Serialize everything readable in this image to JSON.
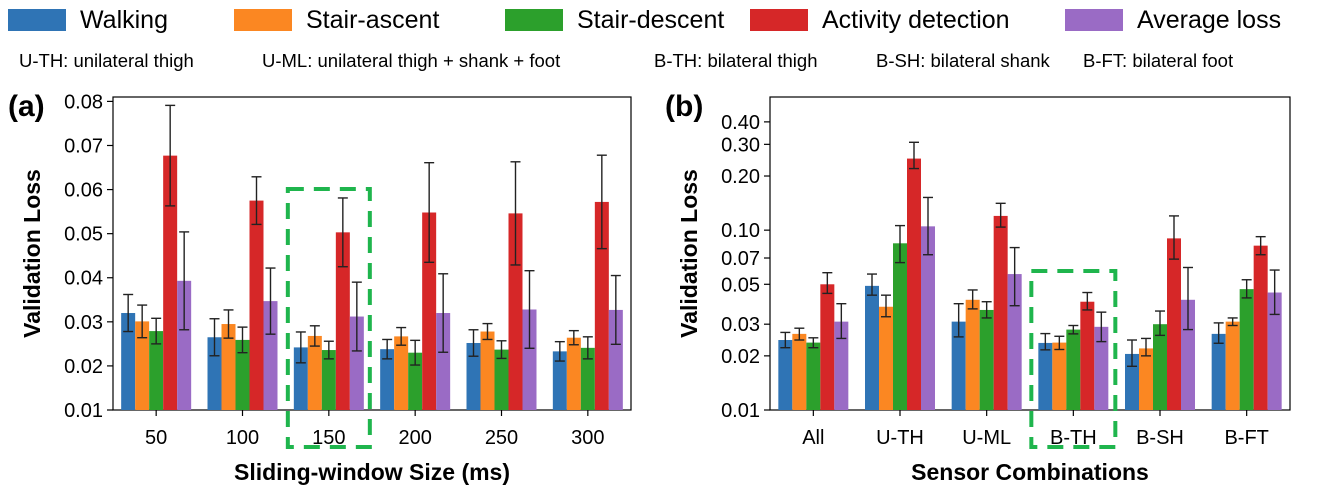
{
  "legend": [
    {
      "label": "Walking",
      "color": "#2f74b5"
    },
    {
      "label": "Stair-ascent",
      "color": "#fb8722"
    },
    {
      "label": "Stair-descent",
      "color": "#2ca02c"
    },
    {
      "label": "Activity detection",
      "color": "#d62728"
    },
    {
      "label": "Average loss",
      "color": "#9a6bc5"
    }
  ],
  "abbreviations": [
    "U-TH: unilateral thigh",
    "U-ML: unilateral thigh + shank + foot",
    "B-TH: bilateral thigh",
    "B-SH: bilateral shank",
    "B-FT: bilateral foot"
  ],
  "chart_data": [
    {
      "panel": "(a)",
      "type": "bar",
      "xlabel": "Sliding-window Size (ms)",
      "ylabel": "Validation Loss",
      "yscale": "linear",
      "ylim": [
        0.01,
        0.081
      ],
      "yticks": [
        "0.01",
        "0.02",
        "0.03",
        "0.04",
        "0.05",
        "0.06",
        "0.07",
        "0.08"
      ],
      "highlight": "150",
      "categories": [
        "50",
        "100",
        "150",
        "200",
        "250",
        "300"
      ],
      "series": [
        {
          "name": "Walking",
          "values": [
            0.032,
            0.0265,
            0.0242,
            0.0238,
            0.0252,
            0.0233
          ],
          "errors": [
            0.0042,
            0.0042,
            0.0035,
            0.0022,
            0.003,
            0.0022
          ]
        },
        {
          "name": "Stair-ascent",
          "values": [
            0.0301,
            0.0295,
            0.0268,
            0.0267,
            0.0278,
            0.0264
          ],
          "errors": [
            0.0037,
            0.0032,
            0.0023,
            0.002,
            0.0018,
            0.0016
          ]
        },
        {
          "name": "Stair-descent",
          "values": [
            0.0279,
            0.0259,
            0.0236,
            0.023,
            0.0237,
            0.0241
          ],
          "errors": [
            0.0029,
            0.0029,
            0.002,
            0.0028,
            0.002,
            0.0025
          ]
        },
        {
          "name": "Activity detection",
          "values": [
            0.0677,
            0.0575,
            0.0503,
            0.0548,
            0.0546,
            0.0572
          ],
          "errors": [
            0.0114,
            0.0054,
            0.0078,
            0.0113,
            0.0117,
            0.0106
          ]
        },
        {
          "name": "Average loss",
          "values": [
            0.0393,
            0.0347,
            0.0312,
            0.032,
            0.0328,
            0.0327
          ],
          "errors": [
            0.0111,
            0.0075,
            0.0078,
            0.0089,
            0.0088,
            0.0078
          ]
        }
      ]
    },
    {
      "panel": "(b)",
      "type": "bar",
      "xlabel": "Sensor Combinations",
      "ylabel": "Validation Loss",
      "yscale": "log",
      "ylim": [
        0.01,
        0.55
      ],
      "yticks": [
        "0.01",
        "0.02",
        "0.03",
        "0.05",
        "0.07",
        "0.10",
        "0.20",
        "0.30",
        "0.40"
      ],
      "highlight": "B-TH",
      "categories": [
        "All",
        "U-TH",
        "U-ML",
        "B-TH",
        "B-SH",
        "B-FT"
      ],
      "series": [
        {
          "name": "Walking",
          "values": [
            0.0245,
            0.049,
            0.031,
            0.0236,
            0.0205,
            0.0265
          ],
          "errors": [
            [
              0.0023,
              0.0025
            ],
            [
              0.0055,
              0.008
            ],
            [
              0.0055,
              0.008
            ],
            [
              0.002,
              0.003
            ],
            [
              0.003,
              0.004
            ],
            [
              0.003,
              0.004
            ]
          ]
        },
        {
          "name": "Stair-ascent",
          "values": [
            0.0265,
            0.0375,
            0.041,
            0.0237,
            0.022,
            0.031
          ],
          "errors": [
            [
              0.002,
              0.002
            ],
            [
              0.0045,
              0.006
            ],
            [
              0.0045,
              0.0055
            ],
            [
              0.002,
              0.002
            ],
            [
              0.002,
              0.003
            ],
            [
              0.0015,
              0.0015
            ]
          ]
        },
        {
          "name": "Stair-descent",
          "values": [
            0.0237,
            0.0845,
            0.036,
            0.028,
            0.03,
            0.047
          ],
          "errors": [
            [
              0.0015,
              0.0015
            ],
            [
              0.0185,
              0.0215
            ],
            [
              0.0035,
              0.004
            ],
            [
              0.0015,
              0.0015
            ],
            [
              0.004,
              0.0055
            ],
            [
              0.005,
              0.006
            ]
          ]
        },
        {
          "name": "Activity detection",
          "values": [
            0.05,
            0.25,
            0.12,
            0.04,
            0.09,
            0.082
          ],
          "errors": [
            [
              0.0055,
              0.008
            ],
            [
              0.03,
              0.058
            ],
            [
              0.016,
              0.021
            ],
            [
              0.004,
              0.005
            ],
            [
              0.021,
              0.03
            ],
            [
              0.009,
              0.01
            ]
          ]
        },
        {
          "name": "Average loss",
          "values": [
            0.031,
            0.105,
            0.057,
            0.029,
            0.041,
            0.045
          ],
          "errors": [
            [
              0.006,
              0.008
            ],
            [
              0.032,
              0.047
            ],
            [
              0.019,
              0.023
            ],
            [
              0.005,
              0.006
            ],
            [
              0.013,
              0.021
            ],
            [
              0.011,
              0.015
            ]
          ]
        }
      ]
    }
  ]
}
